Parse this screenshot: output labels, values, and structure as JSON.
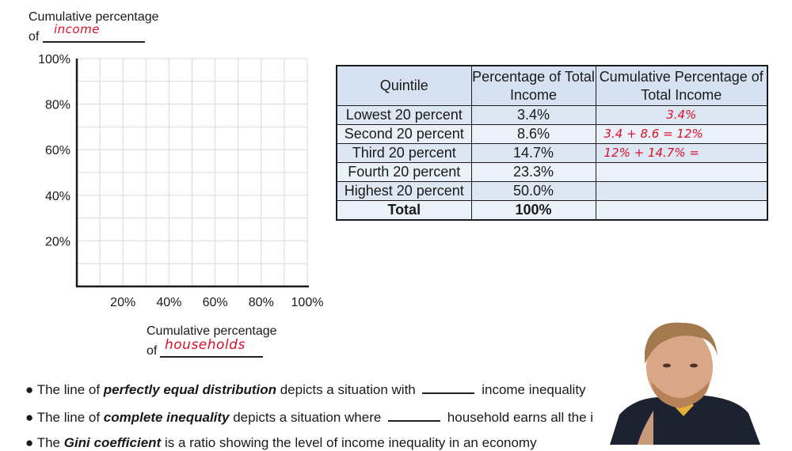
{
  "y_axis_label": {
    "line1": "Cumulative percentage",
    "line2_prefix": "of",
    "handwritten": "income"
  },
  "x_axis_label": {
    "line1": "Cumulative percentage",
    "line2_prefix": "of",
    "handwritten": "households"
  },
  "chart_data": {
    "type": "line",
    "title": "",
    "xlabel": "Cumulative percentage of households",
    "ylabel": "Cumulative percentage of income",
    "xlim": [
      0,
      100
    ],
    "ylim": [
      0,
      100
    ],
    "x_ticks": [
      "20%",
      "40%",
      "60%",
      "80%",
      "100%"
    ],
    "y_ticks": [
      "100%",
      "80%",
      "60%",
      "40%",
      "20%"
    ],
    "grid": true,
    "series": []
  },
  "table": {
    "headers": [
      "Quintile",
      "Percentage of Total Income",
      "Cumulative Percentage of Total Income"
    ],
    "rows": [
      {
        "quintile": "Lowest 20 percent",
        "pct": "3.4%",
        "cum": "3.4%"
      },
      {
        "quintile": "Second 20 percent",
        "pct": "8.6%",
        "cum": "3.4 + 8.6 = 12%"
      },
      {
        "quintile": "Third 20 percent",
        "pct": "14.7%",
        "cum": "12% + 14.7% ="
      },
      {
        "quintile": "Fourth 20 percent",
        "pct": "23.3%",
        "cum": ""
      },
      {
        "quintile": "Highest 20 percent",
        "pct": "50.0%",
        "cum": ""
      }
    ],
    "total": {
      "label": "Total",
      "pct": "100%",
      "cum": ""
    }
  },
  "bullets": [
    {
      "pre": "The line of ",
      "bold": "perfectly equal distribution",
      "mid": " depicts a situation with ",
      "post": " income inequality"
    },
    {
      "pre": "The line of ",
      "bold": "complete inequality",
      "mid": " depicts a situation where ",
      "post": " household earns all the i"
    },
    {
      "pre": "The ",
      "bold": "Gini coefficient",
      "mid": " is a ratio showing the level of income inequality in an economy",
      "post": ""
    }
  ]
}
